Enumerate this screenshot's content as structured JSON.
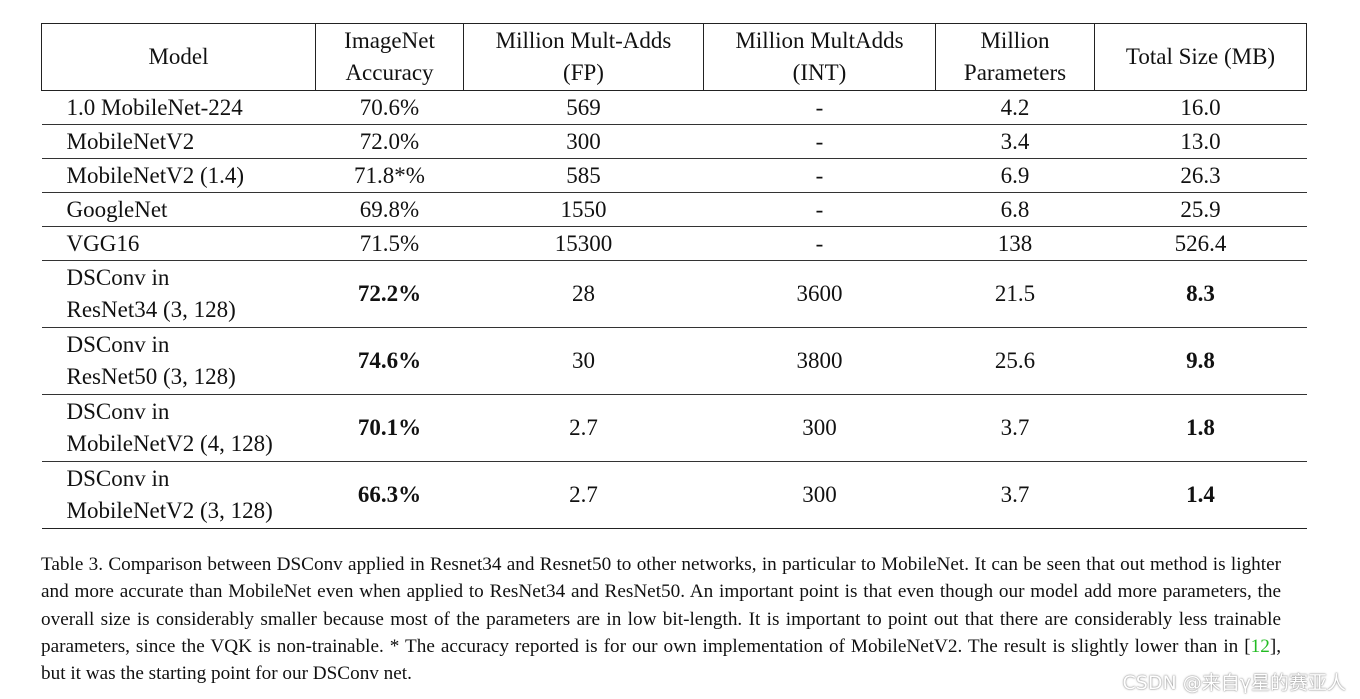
{
  "table": {
    "headers": [
      [
        "Model"
      ],
      [
        "ImageNet",
        "Accuracy"
      ],
      [
        "Million Mult-Adds",
        "(FP)"
      ],
      [
        "Million MultAdds",
        "(INT)"
      ],
      [
        "Million",
        "Parameters"
      ],
      [
        "Total Size (MB)"
      ]
    ],
    "rows": [
      {
        "model": [
          "1.0 MobileNet-224"
        ],
        "accuracy": "70.6%",
        "fp": "569",
        "int": "-",
        "params": "4.2",
        "size": "16.0",
        "bold": false
      },
      {
        "model": [
          "MobileNetV2"
        ],
        "accuracy": "72.0%",
        "fp": "300",
        "int": "-",
        "params": "3.4",
        "size": "13.0",
        "bold": false
      },
      {
        "model": [
          "MobileNetV2 (1.4)"
        ],
        "accuracy": "71.8*%",
        "fp": "585",
        "int": "-",
        "params": "6.9",
        "size": "26.3",
        "bold": false
      },
      {
        "model": [
          "GoogleNet"
        ],
        "accuracy": "69.8%",
        "fp": "1550",
        "int": "-",
        "params": "6.8",
        "size": "25.9",
        "bold": false
      },
      {
        "model": [
          "VGG16"
        ],
        "accuracy": "71.5%",
        "fp": "15300",
        "int": "-",
        "params": "138",
        "size": "526.4",
        "bold": false
      },
      {
        "model": [
          "DSConv in",
          "ResNet34 (3, 128)"
        ],
        "accuracy": "72.2%",
        "fp": "28",
        "int": "3600",
        "params": "21.5",
        "size": "8.3",
        "bold": true
      },
      {
        "model": [
          "DSConv in",
          "ResNet50 (3, 128)"
        ],
        "accuracy": "74.6%",
        "fp": "30",
        "int": "3800",
        "params": "25.6",
        "size": "9.8",
        "bold": true
      },
      {
        "model": [
          "DSConv in",
          "MobileNetV2 (4, 128)"
        ],
        "accuracy": "70.1%",
        "fp": "2.7",
        "int": "300",
        "params": "3.7",
        "size": "1.8",
        "bold": true
      },
      {
        "model": [
          "DSConv in",
          "MobileNetV2 (3, 128)"
        ],
        "accuracy": "66.3%",
        "fp": "2.7",
        "int": "300",
        "params": "3.7",
        "size": "1.4",
        "bold": true
      }
    ]
  },
  "caption": {
    "before_ref": "Table 3. Comparison between DSConv applied in Resnet34 and Resnet50 to other networks, in particular to MobileNet. It can be seen that out method is lighter and more accurate than MobileNet even when applied to ResNet34 and ResNet50. An important point is that even though our model add more parameters, the overall size is considerably smaller because most of the parameters are in low bit-length. It is important to point out that there are considerably less trainable parameters, since the VQK is non-trainable. * The accuracy reported is for our own implementation of MobileNetV2. The result is slightly lower than in [",
    "ref": "12",
    "after_ref": "], but it was the starting point for our DSConv net."
  },
  "watermark": "CSDN @来自γ星的赛亚人",
  "colors": {
    "ref_link": "#22bb22",
    "text": "#111111"
  }
}
